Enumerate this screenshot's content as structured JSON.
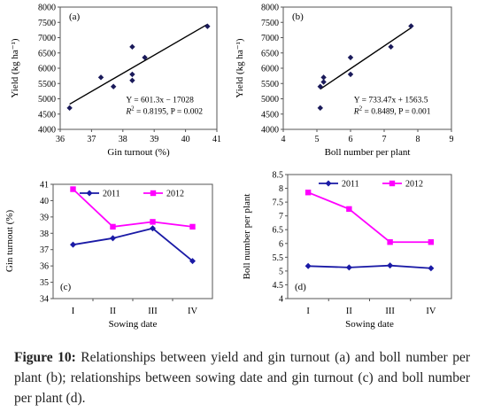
{
  "figure": {
    "caption_label": "Figure 10:",
    "caption_text": " Relationships between yield and gin turnout (a) and boll number per plant (b); relationships between sowing date and gin turnout (c) and boll number per plant (d)."
  },
  "chart_data": [
    {
      "id": "a",
      "type": "scatter",
      "panel_label": "(a)",
      "xlabel": "Gin turnout (%)",
      "ylabel": "Yield (kg ha⁻¹)",
      "xlim": [
        36,
        41
      ],
      "ylim": [
        4000,
        8000
      ],
      "xticks": [
        "36",
        "37",
        "38",
        "39",
        "40",
        "41"
      ],
      "yticks": [
        "4000",
        "4500",
        "5000",
        "5500",
        "6000",
        "6500",
        "7000",
        "7500",
        "8000"
      ],
      "points": [
        {
          "x": 36.3,
          "y": 4700
        },
        {
          "x": 37.3,
          "y": 5700
        },
        {
          "x": 37.7,
          "y": 5400
        },
        {
          "x": 38.3,
          "y": 5600
        },
        {
          "x": 38.3,
          "y": 5800
        },
        {
          "x": 38.3,
          "y": 6700
        },
        {
          "x": 38.7,
          "y": 6350
        },
        {
          "x": 40.7,
          "y": 7370
        }
      ],
      "trendline": {
        "x": [
          36.3,
          40.7
        ]
      },
      "equation": "Y = 601.3x − 17028",
      "stats_r2": "R",
      "stats_rest": " = 0.8195, P = 0.002",
      "color": "#000000"
    },
    {
      "id": "b",
      "type": "scatter",
      "panel_label": "(b)",
      "xlabel": "Boll number per plant",
      "ylabel": "Yield (kg ha⁻¹)",
      "xlim": [
        4,
        9
      ],
      "ylim": [
        4000,
        8000
      ],
      "xticks": [
        "4",
        "5",
        "6",
        "7",
        "8",
        "9"
      ],
      "yticks": [
        "4000",
        "4500",
        "5000",
        "5500",
        "6000",
        "6500",
        "7000",
        "7500",
        "8000"
      ],
      "points": [
        {
          "x": 5.1,
          "y": 4700
        },
        {
          "x": 5.1,
          "y": 5400
        },
        {
          "x": 5.2,
          "y": 5550
        },
        {
          "x": 5.2,
          "y": 5700
        },
        {
          "x": 6.0,
          "y": 5800
        },
        {
          "x": 6.0,
          "y": 6350
        },
        {
          "x": 7.2,
          "y": 6700
        },
        {
          "x": 7.8,
          "y": 7380
        }
      ],
      "trendline": {
        "x": [
          5.1,
          7.8
        ]
      },
      "equation": "Y = 733.47x + 1563.5",
      "stats_r2": "R",
      "stats_rest": " = 0.8489, P = 0.001",
      "color": "#000000"
    },
    {
      "id": "c",
      "type": "line",
      "panel_label": "(c)",
      "xlabel": "Sowing date",
      "ylabel": "Gin turnout (%)",
      "categories": [
        "I",
        "II",
        "III",
        "IV"
      ],
      "ylim": [
        34,
        41
      ],
      "yticks": [
        "34",
        "35",
        "36",
        "37",
        "38",
        "39",
        "40",
        "41"
      ],
      "legend_position": "top-right",
      "series": [
        {
          "name": "2011",
          "values": [
            37.3,
            37.7,
            38.3,
            36.3
          ],
          "color": "#1a1aa6",
          "marker": "diamond"
        },
        {
          "name": "2012",
          "values": [
            40.7,
            38.4,
            38.7,
            38.4
          ],
          "color": "#ff00ff",
          "marker": "square"
        }
      ]
    },
    {
      "id": "d",
      "type": "line",
      "panel_label": "(d)",
      "xlabel": "Sowing date",
      "ylabel": "Boll number per plant",
      "categories": [
        "I",
        "II",
        "III",
        "IV"
      ],
      "ylim": [
        4,
        8.5
      ],
      "yticks": [
        "4",
        "4.5",
        "5",
        "5.5",
        "6",
        "6.5",
        "7",
        "7.5",
        "8",
        "8.5"
      ],
      "legend_position": "top-right",
      "series": [
        {
          "name": "2011",
          "values": [
            5.18,
            5.13,
            5.2,
            5.1
          ],
          "color": "#1a1aa6",
          "marker": "diamond"
        },
        {
          "name": "2012",
          "values": [
            7.85,
            7.25,
            6.05,
            6.05
          ],
          "color": "#ff00ff",
          "marker": "square"
        }
      ]
    }
  ]
}
